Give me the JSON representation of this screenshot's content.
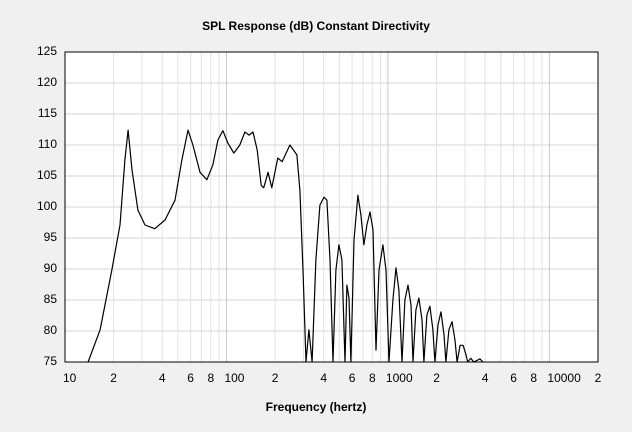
{
  "chart_data": {
    "type": "line",
    "title": "SPL Response (dB)   Constant Directivity",
    "xlabel": "Frequency (hertz)",
    "xscale": "log",
    "grid": true,
    "color": "#000000",
    "xlim": [
      10,
      20000
    ],
    "ylim": [
      75,
      125
    ],
    "yticks": [
      75,
      80,
      85,
      90,
      95,
      100,
      105,
      110,
      115,
      120,
      125
    ],
    "xticks": [
      10,
      {
        "value": 20,
        "label": "2"
      },
      {
        "value": 40,
        "label": "4"
      },
      {
        "value": 60,
        "label": "6"
      },
      {
        "value": 80,
        "label": "8"
      },
      100,
      {
        "value": 200,
        "label": "2"
      },
      {
        "value": 400,
        "label": "4"
      },
      {
        "value": 600,
        "label": "6"
      },
      {
        "value": 800,
        "label": "8"
      },
      1000,
      {
        "value": 2000,
        "label": "2"
      },
      {
        "value": 4000,
        "label": "4"
      },
      {
        "value": 6000,
        "label": "6"
      },
      {
        "value": 8000,
        "label": "8"
      },
      10000,
      {
        "value": 20000,
        "label": "2"
      }
    ],
    "xminorticks": [
      30,
      50,
      70,
      90,
      300,
      500,
      700,
      900,
      3000,
      5000,
      7000,
      9000
    ],
    "x": [
      13.9,
      16.5,
      19.5,
      21.9,
      23.5,
      24.6,
      26,
      28.3,
      31.3,
      36,
      41.6,
      48,
      53,
      57.8,
      62,
      68.6,
      75.7,
      82.4,
      88.5,
      95,
      102,
      111,
      121,
      130,
      138,
      146,
      155,
      164,
      170,
      181,
      191,
      208,
      221,
      247,
      273,
      285,
      298,
      311,
      324,
      339,
      358,
      379,
      402,
      419,
      438,
      457,
      476,
      497,
      519,
      542,
      557,
      574,
      590,
      616,
      652,
      680,
      710,
      741,
      774,
      808,
      844,
      880,
      931,
      973,
      1015,
      1074,
      1122,
      1170,
      1222,
      1274,
      1331,
      1390,
      1430,
      1490,
      1556,
      1625,
      1671,
      1742,
      1820,
      1900,
      1955,
      2042,
      2130,
      2225,
      2286,
      2387,
      2493,
      2604,
      2680,
      2797,
      2920,
      3050,
      3120,
      3260,
      3400,
      3716,
      3870
    ],
    "values": [
      75,
      80.2,
      89.8,
      97.1,
      107.6,
      112.4,
      106,
      99.5,
      97.1,
      96.5,
      97.9,
      101.1,
      107.6,
      112.4,
      110,
      105.6,
      104.4,
      106.8,
      110.8,
      112.3,
      110.3,
      108.7,
      110,
      112.1,
      111.6,
      112.1,
      109.2,
      103.5,
      103.1,
      105.6,
      103.1,
      107.9,
      107.3,
      110,
      108.4,
      102.7,
      89.8,
      75,
      80.2,
      75,
      91.5,
      100.3,
      101.6,
      101.1,
      91.5,
      75,
      89.8,
      93.9,
      91.5,
      75,
      87.4,
      85.3,
      75,
      94.7,
      101.9,
      98.7,
      93.9,
      97.1,
      99.2,
      96.3,
      76.9,
      89.8,
      93.9,
      89.8,
      75,
      85,
      90.2,
      86.6,
      75,
      85,
      87.4,
      84.2,
      75,
      83.4,
      85.3,
      81.8,
      75,
      82.6,
      84,
      80.2,
      75,
      81,
      83.1,
      79.4,
      75,
      80.2,
      81.5,
      78.5,
      75,
      77.7,
      77.7,
      76.1,
      75,
      75.6,
      75,
      75.5,
      75
    ]
  }
}
